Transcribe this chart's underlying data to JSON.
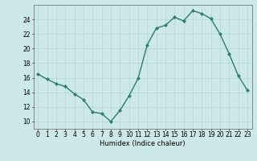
{
  "x": [
    0,
    1,
    2,
    3,
    4,
    5,
    6,
    7,
    8,
    9,
    10,
    11,
    12,
    13,
    14,
    15,
    16,
    17,
    18,
    19,
    20,
    21,
    22,
    23
  ],
  "y": [
    16.5,
    15.8,
    15.2,
    14.8,
    13.8,
    13.0,
    11.3,
    11.1,
    10.0,
    11.5,
    13.5,
    15.9,
    20.5,
    22.8,
    23.2,
    24.3,
    23.8,
    25.2,
    24.8,
    24.1,
    22.0,
    19.3,
    16.3,
    14.3
  ],
  "line_color": "#2e7d6e",
  "marker": "D",
  "marker_size": 2.0,
  "bg_color": "#cce8e8",
  "grid_color": "#b8d8d8",
  "xlabel": "Humidex (Indice chaleur)",
  "xlim": [
    -0.5,
    23.5
  ],
  "ylim": [
    9,
    26
  ],
  "yticks": [
    10,
    12,
    14,
    16,
    18,
    20,
    22,
    24
  ],
  "xticks": [
    0,
    1,
    2,
    3,
    4,
    5,
    6,
    7,
    8,
    9,
    10,
    11,
    12,
    13,
    14,
    15,
    16,
    17,
    18,
    19,
    20,
    21,
    22,
    23
  ],
  "xlabel_fontsize": 6.0,
  "tick_fontsize": 5.5,
  "line_width": 1.0
}
